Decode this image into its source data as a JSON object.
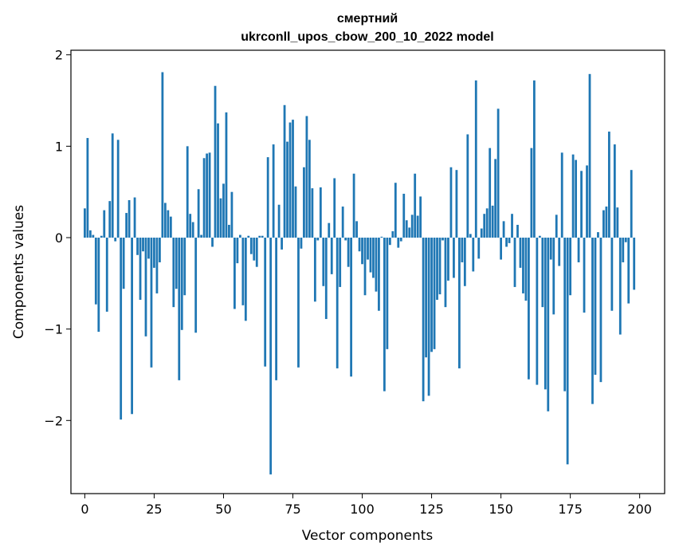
{
  "chart_data": {
    "type": "bar",
    "title": "смертний",
    "subtitle": "ukrconll_upos_cbow_200_10_2022 model",
    "xlabel": "Vector components",
    "ylabel": "Components values",
    "xlim": [
      -5,
      209
    ],
    "ylim": [
      -2.8,
      2.05
    ],
    "xticks": [
      0,
      25,
      50,
      75,
      100,
      125,
      150,
      175,
      200
    ],
    "yticks": [
      -2,
      -1,
      0,
      1,
      2
    ],
    "ytick_labels": [
      "−2",
      "−1",
      "0",
      "1",
      "2"
    ],
    "bar_color": "#1f77b4",
    "values": [
      0.32,
      1.09,
      0.08,
      0.03,
      -0.73,
      -1.03,
      0.02,
      0.3,
      -0.81,
      0.4,
      1.14,
      -0.04,
      1.07,
      -1.99,
      -0.56,
      0.27,
      0.41,
      -1.93,
      0.44,
      -0.19,
      -0.68,
      -0.15,
      -1.08,
      -0.23,
      -1.42,
      -0.33,
      -0.61,
      -0.27,
      1.81,
      0.38,
      0.3,
      0.23,
      -0.76,
      -0.56,
      -1.56,
      -1.01,
      -0.63,
      1.0,
      0.26,
      0.17,
      -1.04,
      0.53,
      0.03,
      0.87,
      0.92,
      0.93,
      -0.1,
      1.66,
      1.25,
      0.43,
      0.59,
      1.37,
      0.14,
      0.5,
      -0.78,
      -0.28,
      0.03,
      -0.74,
      -0.91,
      0.02,
      -0.18,
      -0.25,
      -0.32,
      0.02,
      0.02,
      -1.41,
      0.88,
      -2.59,
      1.02,
      -1.56,
      0.36,
      -0.13,
      1.45,
      1.05,
      1.26,
      1.29,
      0.56,
      -1.42,
      -0.12,
      0.77,
      1.33,
      1.07,
      0.54,
      -0.7,
      -0.03,
      0.55,
      -0.53,
      -0.89,
      0.16,
      -0.4,
      0.65,
      -1.43,
      -0.54,
      0.34,
      -0.03,
      -0.32,
      -1.52,
      0.7,
      0.18,
      -0.15,
      -0.29,
      -0.63,
      -0.24,
      -0.38,
      -0.44,
      -0.59,
      -0.8,
      0.01,
      -1.68,
      -1.22,
      -0.08,
      0.07,
      0.6,
      -0.11,
      -0.04,
      0.48,
      0.19,
      0.11,
      0.25,
      0.7,
      0.24,
      0.45,
      -1.79,
      -1.31,
      -1.73,
      -1.25,
      -1.22,
      -0.68,
      -0.62,
      -0.03,
      -0.76,
      -0.47,
      0.77,
      -0.44,
      0.74,
      -1.43,
      -0.27,
      -0.53,
      1.13,
      0.04,
      -0.37,
      1.72,
      -0.23,
      0.1,
      0.26,
      0.32,
      0.98,
      0.35,
      0.86,
      1.41,
      -0.24,
      0.18,
      -0.1,
      -0.06,
      0.26,
      -0.54,
      0.14,
      -0.33,
      -0.61,
      -0.69,
      -1.55,
      0.98,
      1.72,
      -1.61,
      0.02,
      -0.76,
      -1.66,
      -1.9,
      -0.24,
      -0.84,
      0.25,
      -0.31,
      0.93,
      -1.68,
      -2.48,
      -0.63,
      0.91,
      0.85,
      -0.27,
      0.73,
      -0.82,
      0.79,
      1.79,
      -1.82,
      -1.5,
      0.06,
      -1.58,
      0.3,
      0.34,
      1.16,
      -0.8,
      1.02,
      0.33,
      -1.06,
      -0.27,
      -0.05,
      -0.72,
      0.74,
      -0.57
    ]
  }
}
